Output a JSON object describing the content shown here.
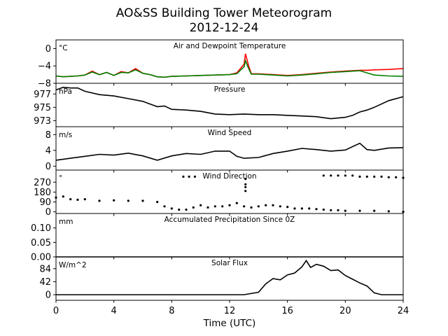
{
  "title": "AO&SS Building Tower Meteorogram",
  "subtitle": "2012-12-24",
  "xlabel": "Time (UTC)",
  "x_ticks": [
    "0",
    "4",
    "8",
    "12",
    "16",
    "20",
    "24"
  ],
  "colors": {
    "temperature": "#ff0000",
    "dewpoint": "#008000",
    "line": "#000000"
  },
  "chart_data": [
    {
      "type": "line",
      "title": "Air and Dewpoint Temperature",
      "unit": "°C",
      "xlim": [
        0,
        24
      ],
      "ylim": [
        -8,
        2
      ],
      "yticks": [
        0,
        -4,
        -8
      ],
      "series": [
        {
          "color": "#ff0000",
          "x": [
            0,
            0.5,
            1,
            1.5,
            2,
            2.5,
            3,
            3.5,
            4,
            4.5,
            5,
            5.5,
            6,
            6.5,
            7,
            7.5,
            8,
            9,
            10,
            11,
            12,
            12.5,
            13,
            13.1,
            13.3,
            13.5,
            14,
            15,
            16,
            17,
            18,
            19,
            20,
            21,
            21.5,
            22,
            23,
            24
          ],
          "y": [
            -6.3,
            -6.5,
            -6.4,
            -6.3,
            -6.1,
            -5.2,
            -6.0,
            -5.5,
            -6.2,
            -5.3,
            -5.6,
            -4.6,
            -5.7,
            -6.0,
            -6.5,
            -6.6,
            -6.4,
            -6.3,
            -6.2,
            -6.1,
            -6.0,
            -5.6,
            -3.6,
            -1.2,
            -3.8,
            -5.8,
            -5.8,
            -6.0,
            -6.2,
            -6.0,
            -5.7,
            -5.4,
            -5.2,
            -5.0,
            -5.0,
            -4.9,
            -4.8,
            -4.6
          ]
        },
        {
          "color": "#008000",
          "x": [
            0,
            0.5,
            1,
            1.5,
            2,
            2.5,
            3,
            3.5,
            4,
            4.5,
            5,
            5.5,
            6,
            6.5,
            7,
            7.5,
            8,
            9,
            10,
            11,
            12,
            12.5,
            13,
            13.1,
            13.3,
            13.5,
            14,
            15,
            16,
            17,
            18,
            19,
            20,
            21,
            21.5,
            22,
            23,
            24
          ],
          "y": [
            -6.3,
            -6.5,
            -6.4,
            -6.3,
            -6.1,
            -5.4,
            -6.0,
            -5.5,
            -6.2,
            -5.5,
            -5.6,
            -4.9,
            -5.7,
            -6.0,
            -6.5,
            -6.6,
            -6.4,
            -6.3,
            -6.2,
            -6.1,
            -6.0,
            -5.8,
            -4.2,
            -2.8,
            -4.5,
            -5.9,
            -5.9,
            -6.1,
            -6.3,
            -6.1,
            -5.8,
            -5.5,
            -5.3,
            -5.1,
            -5.6,
            -6.1,
            -6.3,
            -6.4
          ]
        }
      ]
    },
    {
      "type": "line",
      "title": "Pressure",
      "unit": "hPa",
      "xlim": [
        0,
        24
      ],
      "ylim": [
        972.1,
        978.6
      ],
      "yticks": [
        977,
        975,
        973
      ],
      "series": [
        {
          "color": "#000000",
          "x": [
            0,
            0.5,
            1,
            1.5,
            2,
            3,
            4,
            5,
            6,
            6.5,
            7,
            7.5,
            8,
            9,
            10,
            11,
            12,
            13,
            14,
            15,
            16,
            17,
            18,
            19,
            20,
            20.5,
            21,
            21.5,
            22,
            23,
            24
          ],
          "y": [
            977.6,
            978.0,
            977.9,
            977.9,
            977.4,
            976.9,
            976.7,
            976.3,
            975.9,
            975.5,
            975.1,
            975.2,
            974.7,
            974.6,
            974.4,
            974.0,
            973.9,
            974.0,
            973.9,
            973.9,
            973.8,
            973.7,
            973.6,
            973.3,
            973.5,
            973.8,
            974.3,
            974.6,
            975.0,
            976.0,
            976.6
          ]
        }
      ]
    },
    {
      "type": "line",
      "title": "Wind Speed",
      "unit": "m/s",
      "xlim": [
        0,
        24
      ],
      "ylim": [
        -1,
        10
      ],
      "yticks": [
        8,
        4,
        0
      ],
      "series": [
        {
          "color": "#000000",
          "x": [
            0,
            1,
            2,
            3,
            4,
            5,
            6,
            7,
            8,
            9,
            10,
            11,
            12,
            12.5,
            13,
            14,
            15,
            16,
            17,
            18,
            19,
            20,
            21,
            21.5,
            22,
            23,
            24
          ],
          "y": [
            1.5,
            2.0,
            2.5,
            3.0,
            2.8,
            3.3,
            2.6,
            1.5,
            2.6,
            3.2,
            3.0,
            3.8,
            3.8,
            2.5,
            2.0,
            2.2,
            3.2,
            3.8,
            4.5,
            4.2,
            3.8,
            4.1,
            5.8,
            4.2,
            4.0,
            4.6,
            4.7
          ]
        }
      ]
    },
    {
      "type": "scatter",
      "title": "Wind Direction",
      "unit": "°",
      "xlim": [
        0,
        24
      ],
      "ylim": [
        -15,
        380
      ],
      "yticks": [
        270,
        180,
        90,
        0
      ],
      "series": [
        {
          "color": "#000000",
          "x": [
            0,
            0.5,
            1,
            1.5,
            2,
            3,
            4,
            5,
            6,
            7,
            7.5,
            8,
            8.5,
            9,
            9.5,
            10,
            10.5,
            11,
            11.5,
            12,
            12.5,
            13,
            13.5,
            14,
            14.5,
            15,
            15.5,
            16,
            16.5,
            17,
            17.5,
            18,
            18.5,
            19,
            19.5,
            20,
            21,
            22,
            23,
            24
          ],
          "y": [
            130,
            140,
            115,
            110,
            115,
            100,
            105,
            100,
            100,
            90,
            50,
            30,
            20,
            20,
            40,
            60,
            40,
            50,
            50,
            60,
            80,
            50,
            40,
            50,
            60,
            60,
            50,
            45,
            30,
            30,
            30,
            25,
            20,
            15,
            15,
            10,
            10,
            10,
            5,
            0
          ]
        },
        {
          "color": "#000000",
          "x": [
            8.8,
            9.2,
            9.6,
            13.1,
            13.1,
            13.1,
            13.1,
            18.5,
            19.0,
            19.5,
            20.0,
            20.5,
            21.0,
            21.5,
            22.0,
            22.5,
            23.0,
            23.5,
            24.0
          ],
          "y": [
            320,
            320,
            320,
            300,
            250,
            225,
            190,
            330,
            330,
            330,
            330,
            330,
            320,
            320,
            320,
            320,
            315,
            315,
            310
          ]
        }
      ]
    },
    {
      "type": "line",
      "title": "Accumulated Precipitation Since 0Z",
      "unit": "mm",
      "xlim": [
        0,
        24
      ],
      "ylim": [
        0,
        0.15
      ],
      "yticks": [
        0.1,
        0.05,
        0.0
      ],
      "series": [
        {
          "color": "#000000",
          "x": [
            0,
            24
          ],
          "y": [
            0,
            0
          ]
        }
      ]
    },
    {
      "type": "line",
      "title": "Solar Flux",
      "unit": "W/m^2",
      "xlim": [
        0,
        24
      ],
      "ylim": [
        -18,
        122
      ],
      "yticks": [
        84,
        42,
        0
      ],
      "series": [
        {
          "color": "#000000",
          "x": [
            0,
            13,
            14,
            14.5,
            15,
            15.5,
            16,
            16.5,
            17,
            17.3,
            17.6,
            18,
            18.5,
            19,
            19.5,
            20,
            20.5,
            21,
            21.5,
            22,
            22.5,
            23,
            24
          ],
          "y": [
            0,
            0,
            8,
            35,
            52,
            48,
            64,
            70,
            90,
            110,
            88,
            98,
            92,
            78,
            80,
            62,
            50,
            38,
            28,
            6,
            0,
            0,
            0
          ]
        }
      ]
    }
  ]
}
